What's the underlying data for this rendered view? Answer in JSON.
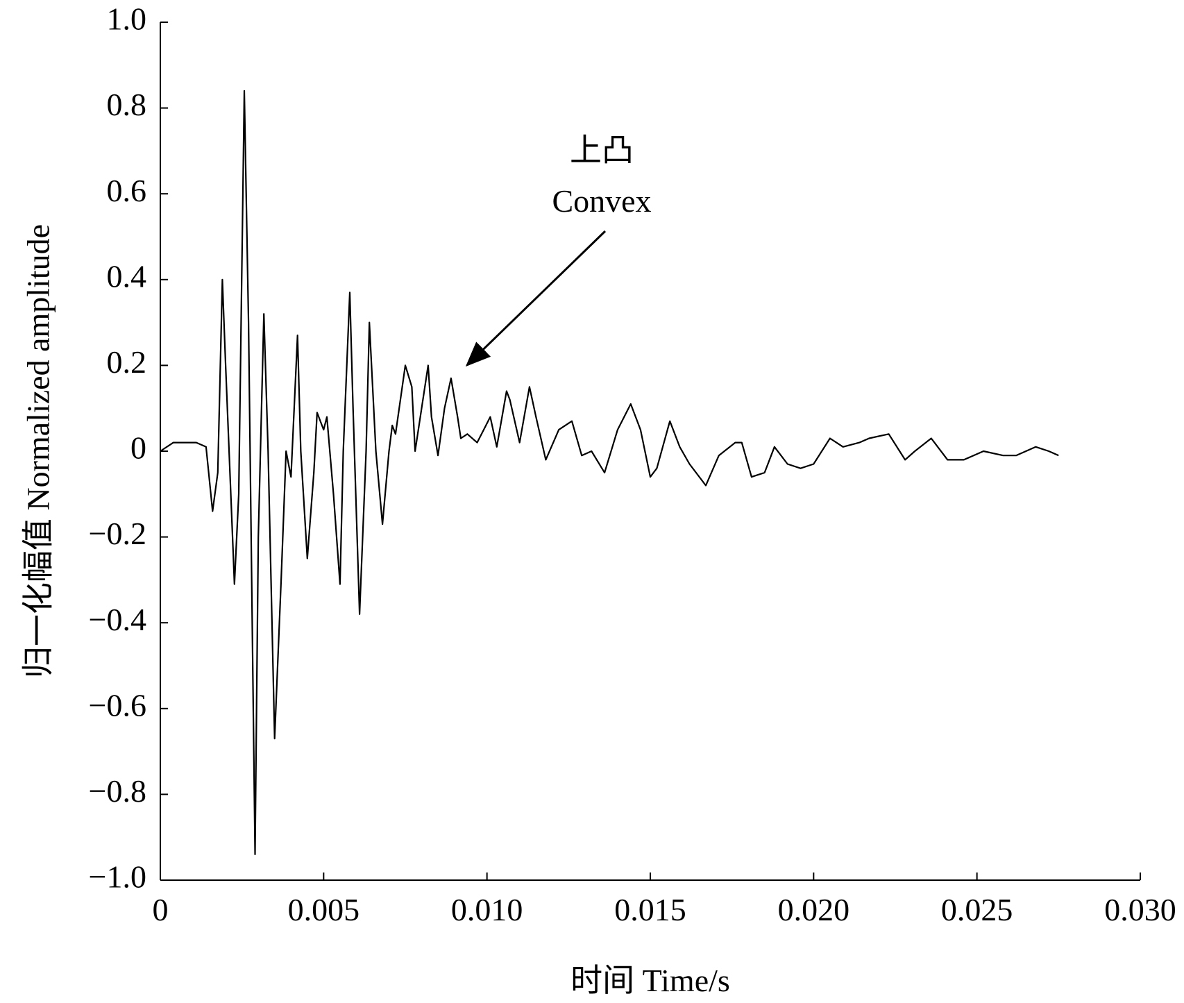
{
  "chart_data": {
    "type": "line",
    "x_label": "时间  Time/s",
    "y_label": "归一化幅值 Normalized amplitude",
    "annotation": [
      "上凸",
      "Convex"
    ],
    "xlim": [
      0,
      0.03
    ],
    "xticks": [
      0,
      {
        "value": 0.005,
        "label": "0.005"
      },
      {
        "value": 0.01,
        "label": "0.010"
      },
      {
        "value": 0.015,
        "label": "0.015"
      },
      {
        "value": 0.02,
        "label": "0.020"
      },
      {
        "value": 0.025,
        "label": "0.025"
      },
      {
        "value": 0.03,
        "label": "0.030"
      }
    ],
    "ylim": [
      -1,
      1
    ],
    "yticks": [
      {
        "value": -1,
        "label": "−1.0"
      },
      {
        "value": -0.8,
        "label": "−0.8"
      },
      {
        "value": -0.6,
        "label": "−0.6"
      },
      {
        "value": -0.4,
        "label": "−0.4"
      },
      {
        "value": -0.2,
        "label": "−0.2"
      },
      0,
      0.2,
      0.4,
      0.6,
      0.8,
      {
        "value": 1,
        "label": "1.0"
      }
    ],
    "grid": false,
    "color": "#000000",
    "x": [
      0,
      0.0004,
      0.0011,
      0.0014,
      0.0016,
      0.00176,
      0.0019,
      0.002,
      0.00227,
      0.0024,
      0.00257,
      0.0027,
      0.0029,
      0.003,
      0.00317,
      0.0033,
      0.0035,
      0.0037,
      0.00385,
      0.004,
      0.0042,
      0.0043,
      0.0045,
      0.0047,
      0.0048,
      0.005,
      0.0051,
      0.0053,
      0.0055,
      0.0056,
      0.0058,
      0.0059,
      0.0061,
      0.0063,
      0.0064,
      0.0066,
      0.0068,
      0.007,
      0.0071,
      0.0072,
      0.0075,
      0.0077,
      0.0078,
      0.008,
      0.0082,
      0.0083,
      0.0085,
      0.0087,
      0.0089,
      0.0091,
      0.0092,
      0.0094,
      0.0097,
      0.0099,
      0.0101,
      0.0103,
      0.0106,
      0.0107,
      0.011,
      0.0113,
      0.0115,
      0.0118,
      0.0122,
      0.0126,
      0.0129,
      0.0132,
      0.0136,
      0.014,
      0.0144,
      0.0147,
      0.015,
      0.0152,
      0.0156,
      0.0159,
      0.0162,
      0.0167,
      0.0171,
      0.0176,
      0.0178,
      0.0181,
      0.0185,
      0.0188,
      0.0192,
      0.0196,
      0.02,
      0.0205,
      0.0209,
      0.0214,
      0.0217,
      0.0223,
      0.0228,
      0.0231,
      0.0236,
      0.0241,
      0.0246,
      0.0252,
      0.0258,
      0.0262,
      0.0268,
      0.0272,
      0.0275
    ],
    "values": [
      0,
      0.02,
      0.02,
      0.01,
      -0.14,
      -0.05,
      0.4,
      0.2,
      -0.31,
      -0.1,
      0.84,
      0.3,
      -0.94,
      -0.2,
      0.32,
      0,
      -0.67,
      -0.3,
      0,
      -0.06,
      0.27,
      0,
      -0.25,
      -0.05,
      0.09,
      0.05,
      0.08,
      -0.1,
      -0.31,
      0,
      0.37,
      0.1,
      -0.38,
      0,
      0.3,
      0,
      -0.17,
      0,
      0.06,
      0.04,
      0.2,
      0.15,
      0,
      0.1,
      0.2,
      0.08,
      -0.01,
      0.1,
      0.17,
      0.08,
      0.03,
      0.04,
      0.02,
      0.05,
      0.08,
      0.01,
      0.14,
      0.12,
      0.02,
      0.15,
      0.08,
      -0.02,
      0.05,
      0.07,
      -0.01,
      0,
      -0.05,
      0.05,
      0.11,
      0.05,
      -0.06,
      -0.04,
      0.07,
      0.01,
      -0.03,
      -0.08,
      -0.01,
      0.02,
      0.02,
      -0.06,
      -0.05,
      0.01,
      -0.03,
      -0.04,
      -0.03,
      0.03,
      0.01,
      0.02,
      0.03,
      0.04,
      -0.02,
      0,
      0.03,
      -0.02,
      -0.02,
      0,
      -0.01,
      -0.01,
      0.01,
      0,
      -0.01
    ]
  }
}
